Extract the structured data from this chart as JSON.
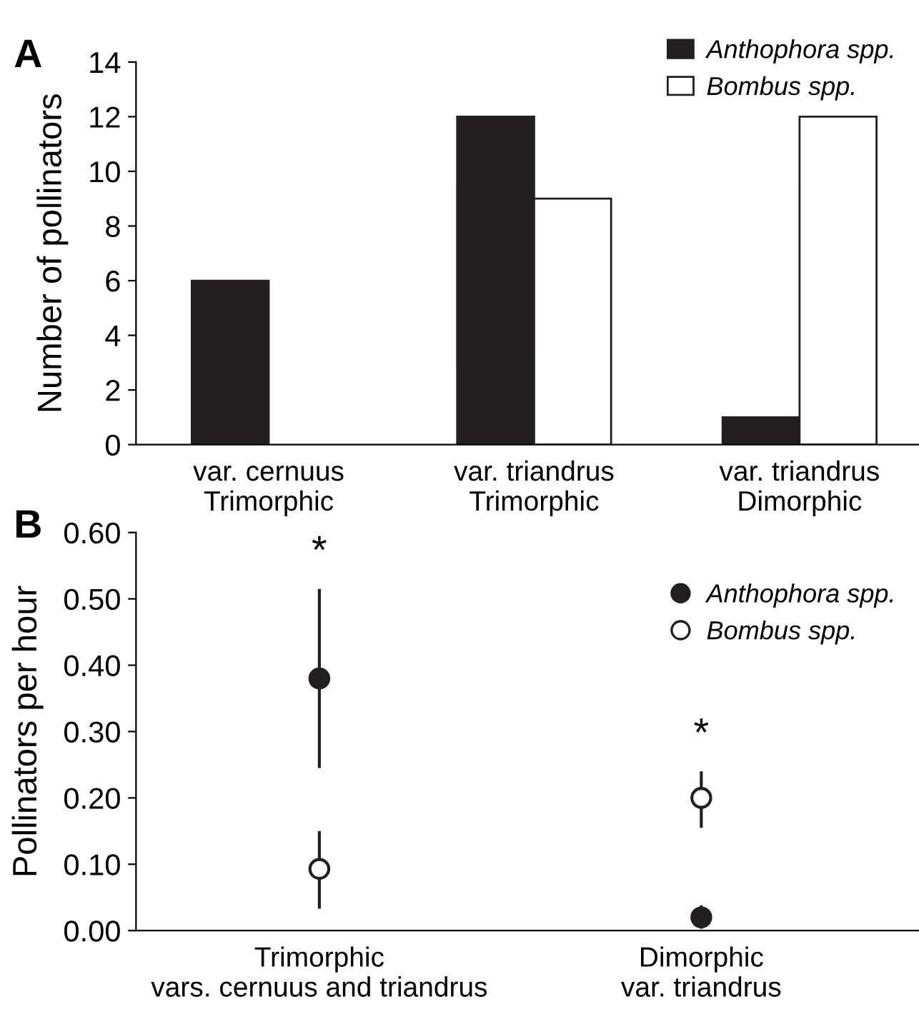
{
  "chart_data": [
    {
      "type": "bar",
      "title": "A",
      "ylabel": "Number of pollinators",
      "categories": [
        "var. cernuus\nTrimorphic",
        "var. triandrus\nTrimorphic",
        "var. triandrus\nDimorphic"
      ],
      "series": [
        {
          "name": "Anthophora spp.",
          "color": "#231f20",
          "values": [
            6,
            12,
            1
          ]
        },
        {
          "name": "Bombus spp.",
          "color": "#ffffff",
          "values": [
            0,
            9,
            12
          ]
        }
      ],
      "ylim": [
        0,
        14
      ],
      "yticks": [
        0,
        2,
        4,
        6,
        8,
        10,
        12,
        14
      ],
      "grid": false,
      "legend": "top right"
    },
    {
      "type": "scatter",
      "title": "B",
      "ylabel": "Pollinators per hour",
      "categories": [
        "Trimorphic\nvars. cernuus and triandrus",
        "Dimorphic\nvar. triandrus"
      ],
      "series": [
        {
          "name": "Anthophora spp.",
          "color": "#231f20",
          "values": [
            0.38,
            0.02
          ],
          "errors": [
            [
              0.245,
              0.515
            ],
            [
              0.003,
              0.038
            ]
          ]
        },
        {
          "name": "Bombus spp.",
          "color": "#ffffff",
          "values": [
            0.093,
            0.2
          ],
          "errors": [
            [
              0.033,
              0.15
            ],
            [
              0.155,
              0.24
            ]
          ]
        }
      ],
      "ylim": [
        0,
        0.6
      ],
      "yticks": [
        {
          "value": 0,
          "label": "0.00"
        },
        {
          "value": 0.1,
          "label": "0.10"
        },
        {
          "value": 0.2,
          "label": "0.20"
        },
        {
          "value": 0.3,
          "label": "0.30"
        },
        {
          "value": 0.4,
          "label": "0.40"
        },
        {
          "value": 0.5,
          "label": "0.50"
        },
        {
          "value": 0.6,
          "label": "0.60"
        }
      ],
      "annotations": [
        "*",
        "*"
      ],
      "marker": "circle",
      "grid": false,
      "legend": "top right"
    }
  ]
}
